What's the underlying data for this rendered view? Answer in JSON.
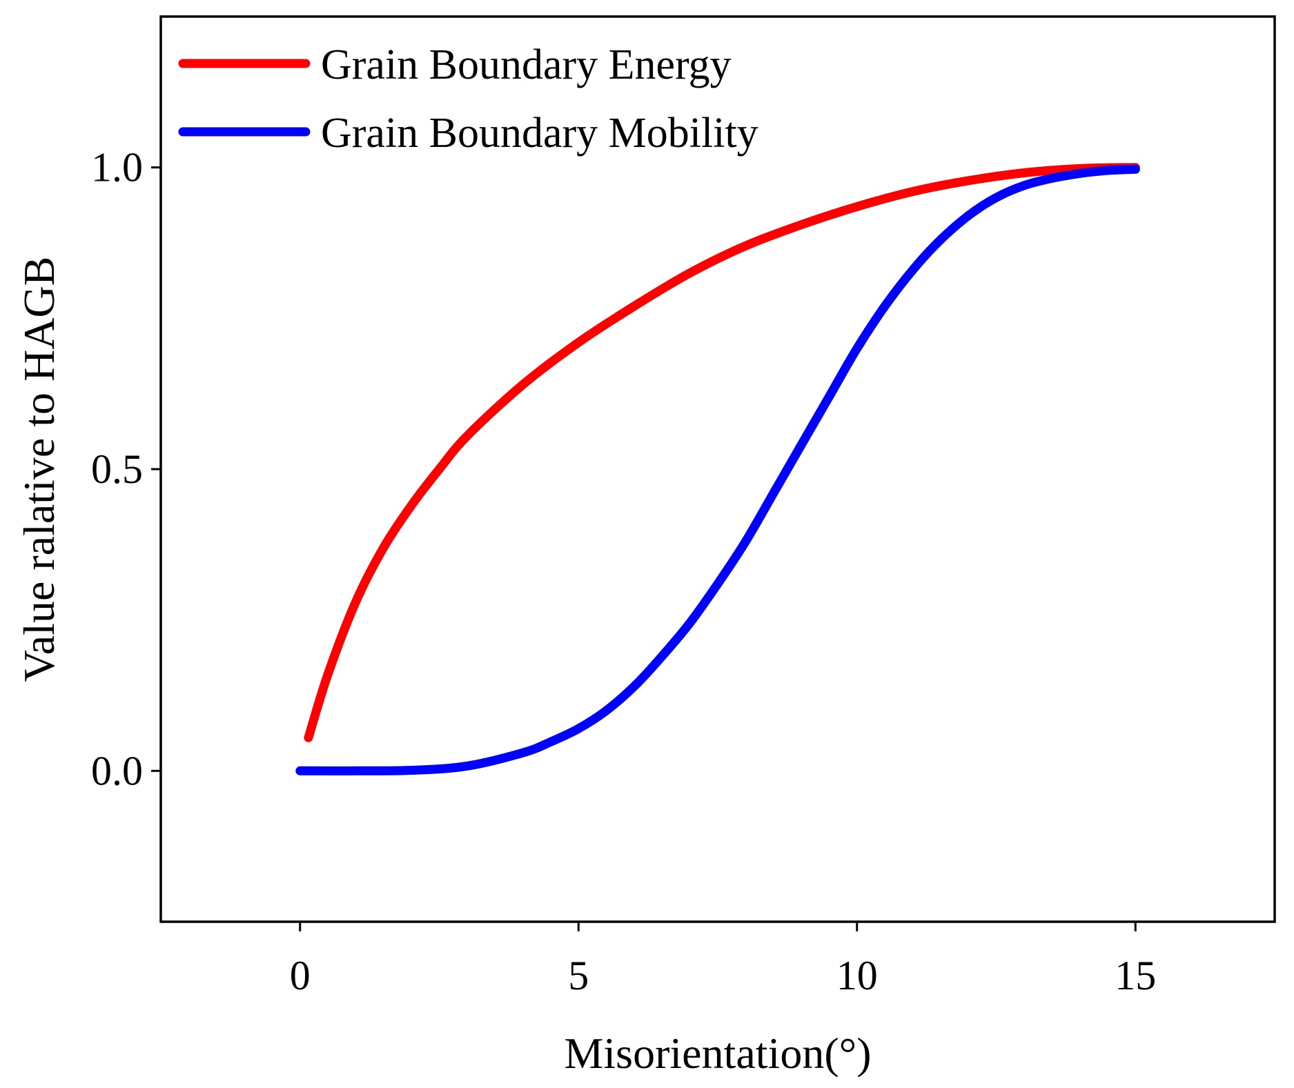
{
  "chart_data": {
    "type": "line",
    "title": "",
    "xlabel": "Misorientation(°)",
    "ylabel": "Value ralative to HAGB",
    "xlim": [
      -2.5,
      17.5
    ],
    "ylim": [
      -0.25,
      1.25
    ],
    "xticks": [
      0,
      5,
      10,
      15
    ],
    "xtick_labels": [
      "0",
      "5",
      "10",
      "15"
    ],
    "yticks": [
      0.0,
      0.5,
      1.0
    ],
    "ytick_labels": [
      "0.0",
      "0.5",
      "1.0"
    ],
    "grid": false,
    "legend_position": "top-left",
    "series": [
      {
        "name": "Grain Boundary Energy",
        "color": "#ff0000",
        "x": [
          0.15,
          0.5,
          1,
          1.5,
          2,
          2.5,
          3,
          4,
          5,
          6,
          7,
          8,
          9,
          10,
          11,
          12,
          13,
          14,
          15
        ],
        "y": [
          0.055,
          0.16,
          0.28,
          0.37,
          0.44,
          0.5,
          0.555,
          0.64,
          0.71,
          0.77,
          0.825,
          0.87,
          0.905,
          0.935,
          0.96,
          0.978,
          0.991,
          0.998,
          1.0
        ]
      },
      {
        "name": "Grain Boundary Mobility",
        "color": "#0000ff",
        "x": [
          0,
          1,
          2,
          3,
          4,
          4.5,
          5,
          5.5,
          6,
          6.5,
          7,
          7.5,
          8,
          8.5,
          9,
          9.5,
          10,
          10.5,
          11,
          11.5,
          12,
          12.5,
          13,
          13.5,
          14,
          14.5,
          15
        ],
        "y": [
          0.0,
          0.0,
          0.001,
          0.008,
          0.03,
          0.048,
          0.07,
          0.1,
          0.14,
          0.19,
          0.245,
          0.31,
          0.38,
          0.46,
          0.54,
          0.62,
          0.7,
          0.77,
          0.83,
          0.88,
          0.92,
          0.95,
          0.97,
          0.982,
          0.99,
          0.995,
          0.997
        ]
      }
    ]
  }
}
